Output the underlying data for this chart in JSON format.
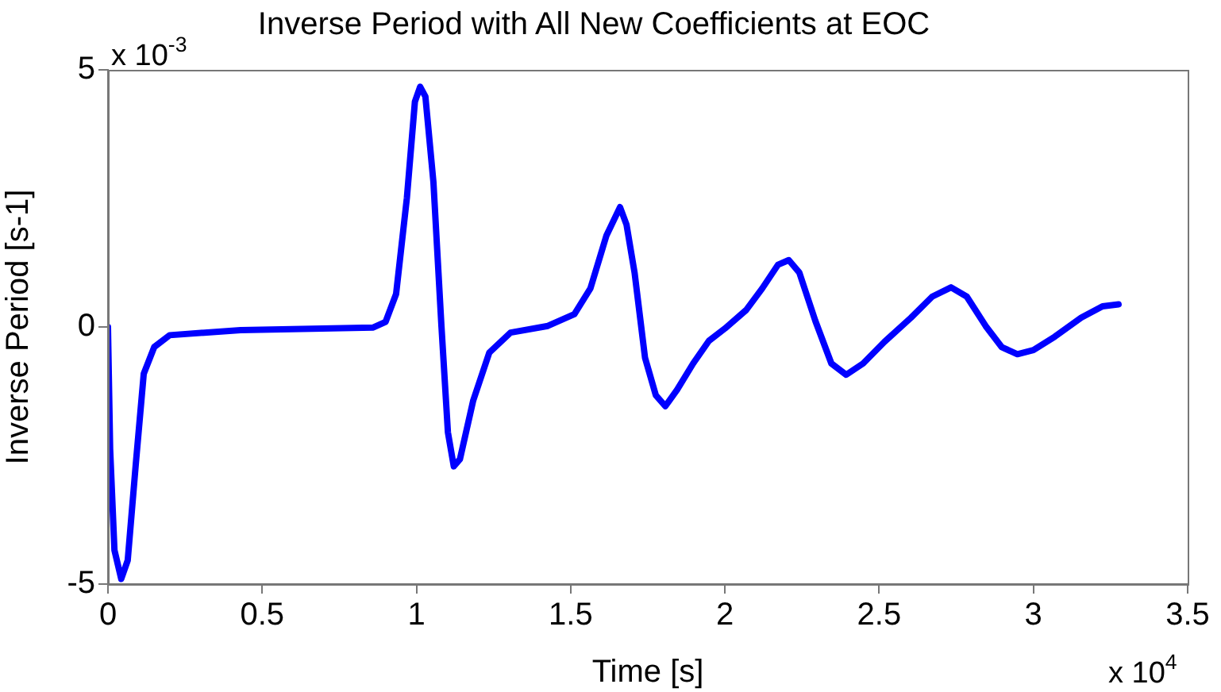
{
  "chart_data": {
    "type": "line",
    "title": "Inverse Period with All New Coefficients at EOC",
    "xlabel": "Time [s]",
    "ylabel": "Inverse Period [s-1]",
    "annotations": [
      "x 10$^{-3}$",
      "x 10$^{4}$"
    ],
    "xlim": [
      0,
      3.5
    ],
    "xticks": [
      0,
      0.5,
      1,
      1.5,
      2,
      2.5,
      3,
      3.5
    ],
    "ylim": [
      -5,
      5
    ],
    "yticks": [
      -5,
      0,
      5
    ],
    "grid": false,
    "legend": false,
    "marker": "none",
    "line_style": "solid",
    "series": [
      {
        "color": "#0000ff",
        "x": [
          0,
          0.007,
          0.021,
          0.043,
          0.064,
          0.09,
          0.116,
          0.15,
          0.2,
          0.43,
          0.86,
          0.9,
          0.934,
          0.969,
          0.995,
          1.012,
          1.029,
          1.055,
          1.081,
          1.102,
          1.121,
          1.141,
          1.184,
          1.236,
          1.305,
          1.426,
          1.512,
          1.564,
          1.616,
          1.66,
          1.681,
          1.707,
          1.741,
          1.776,
          1.807,
          1.845,
          1.897,
          1.948,
          2.0,
          2.069,
          2.121,
          2.172,
          2.207,
          2.241,
          2.293,
          2.345,
          2.393,
          2.448,
          2.517,
          2.603,
          2.672,
          2.733,
          2.784,
          2.845,
          2.897,
          2.948,
          3.0,
          3.069,
          3.155,
          3.224,
          3.276
        ],
        "values": [
          0,
          -2.37,
          -4.34,
          -4.9,
          -4.54,
          -2.68,
          -0.91,
          -0.39,
          -0.16,
          -0.06,
          -0.01,
          0.1,
          0.64,
          2.51,
          4.38,
          4.67,
          4.48,
          2.82,
          0.02,
          -2.05,
          -2.71,
          -2.57,
          -1.43,
          -0.5,
          -0.11,
          0.02,
          0.25,
          0.75,
          1.78,
          2.33,
          1.99,
          1.06,
          -0.6,
          -1.33,
          -1.54,
          -1.22,
          -0.71,
          -0.27,
          -0.03,
          0.33,
          0.75,
          1.21,
          1.3,
          1.06,
          0.12,
          -0.71,
          -0.93,
          -0.71,
          -0.29,
          0.18,
          0.59,
          0.77,
          0.59,
          0.02,
          -0.39,
          -0.53,
          -0.45,
          -0.19,
          0.18,
          0.4,
          0.44
        ]
      }
    ]
  }
}
